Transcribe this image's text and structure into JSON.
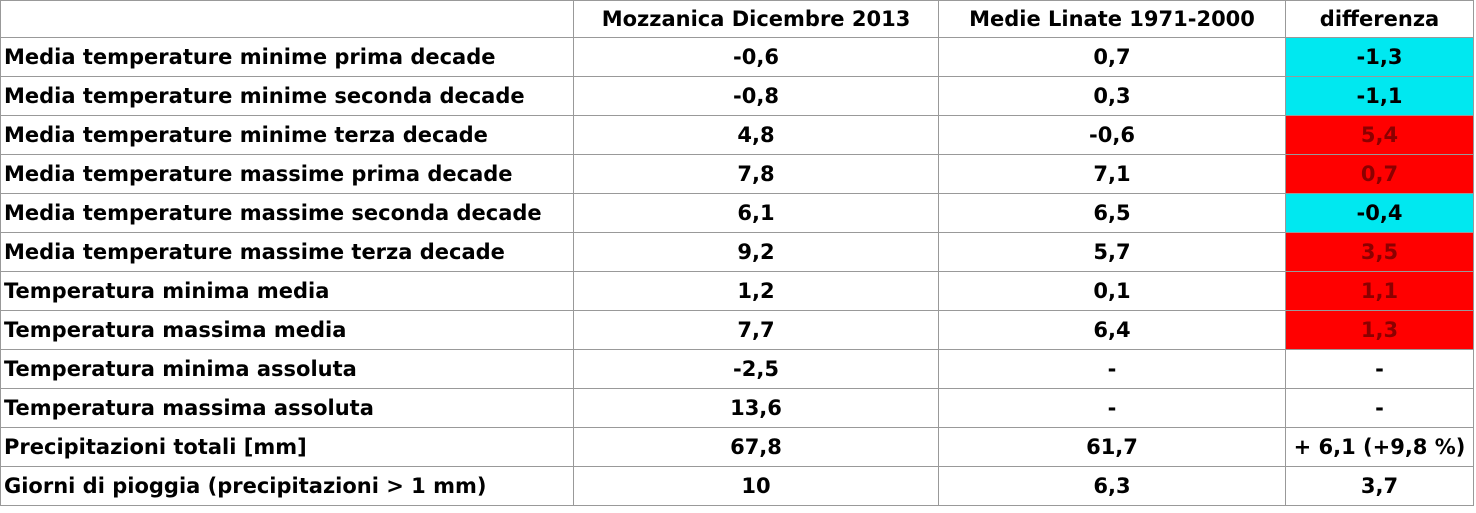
{
  "table": {
    "header": [
      "Mozzanica Dicembre  2013",
      "Medie Linate 1971-2000",
      "differenza"
    ],
    "rows": [
      [
        "Media temperature minime prima decade",
        "-0,6",
        "0,7",
        "-1,3"
      ],
      [
        "Media temperature minime seconda decade",
        "-0,8",
        "0,3",
        "-1,1"
      ],
      [
        "Media temperature minime terza decade",
        "4,8",
        "-0,6",
        "5,4"
      ],
      [
        "Media temperature massime prima decade",
        "7,8",
        "7,1",
        "0,7"
      ],
      [
        "Media temperature massime seconda decade",
        "6,1",
        "6,5",
        "-0,4"
      ],
      [
        "Media temperature massime  terza decade",
        "9,2",
        "5,7",
        "3,5"
      ],
      [
        "Temperatura minima media",
        "1,2",
        "0,1",
        "1,1"
      ],
      [
        "Temperatura massima media",
        "7,7",
        "6,4",
        "1,3"
      ],
      [
        "Temperatura minima assoluta",
        "-2,5",
        "-",
        "-"
      ],
      [
        "Temperatura massima assoluta",
        "13,6",
        "-",
        "-"
      ],
      [
        "Precipitazioni totali [mm]",
        "67,8",
        "61,7",
        "+ 6,1 (+9,8 %)"
      ],
      [
        "Giorni di pioggia (precipitazioni > 1 mm)",
        "10",
        "6,3",
        "3,7"
      ]
    ],
    "diff_colors": [
      "#00e8f0",
      "#00e8f0",
      "#ff0000",
      "#ff0000",
      "#00e8f0",
      "#ff0000",
      "#ff0000",
      "#ff0000",
      null,
      null,
      null,
      null
    ]
  }
}
